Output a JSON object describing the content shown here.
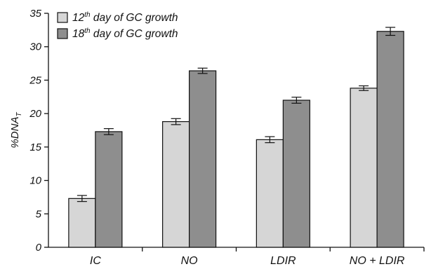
{
  "chart_data": {
    "type": "bar",
    "categories": [
      "IC",
      "NO",
      "LDIR",
      "NO + LDIR"
    ],
    "series": [
      {
        "name_prefix": "12",
        "name_sup": "th",
        "name_suffix": " day of GC growth",
        "color": "#d6d6d6",
        "values": [
          7.3,
          18.8,
          16.1,
          23.8
        ],
        "errors": [
          0.45,
          0.45,
          0.45,
          0.35
        ]
      },
      {
        "name_prefix": "18",
        "name_sup": "th",
        "name_suffix": " day of GC growth",
        "color": "#8e8e8e",
        "values": [
          17.3,
          26.4,
          22.0,
          32.3
        ],
        "errors": [
          0.45,
          0.4,
          0.45,
          0.6
        ]
      }
    ],
    "ylabel_main": "%DNA",
    "ylabel_sub": "T",
    "ylim": [
      0,
      35
    ],
    "yticks": [
      0,
      5,
      10,
      15,
      20,
      25,
      30,
      35
    ],
    "legend_position": "top-left",
    "grid": false
  }
}
